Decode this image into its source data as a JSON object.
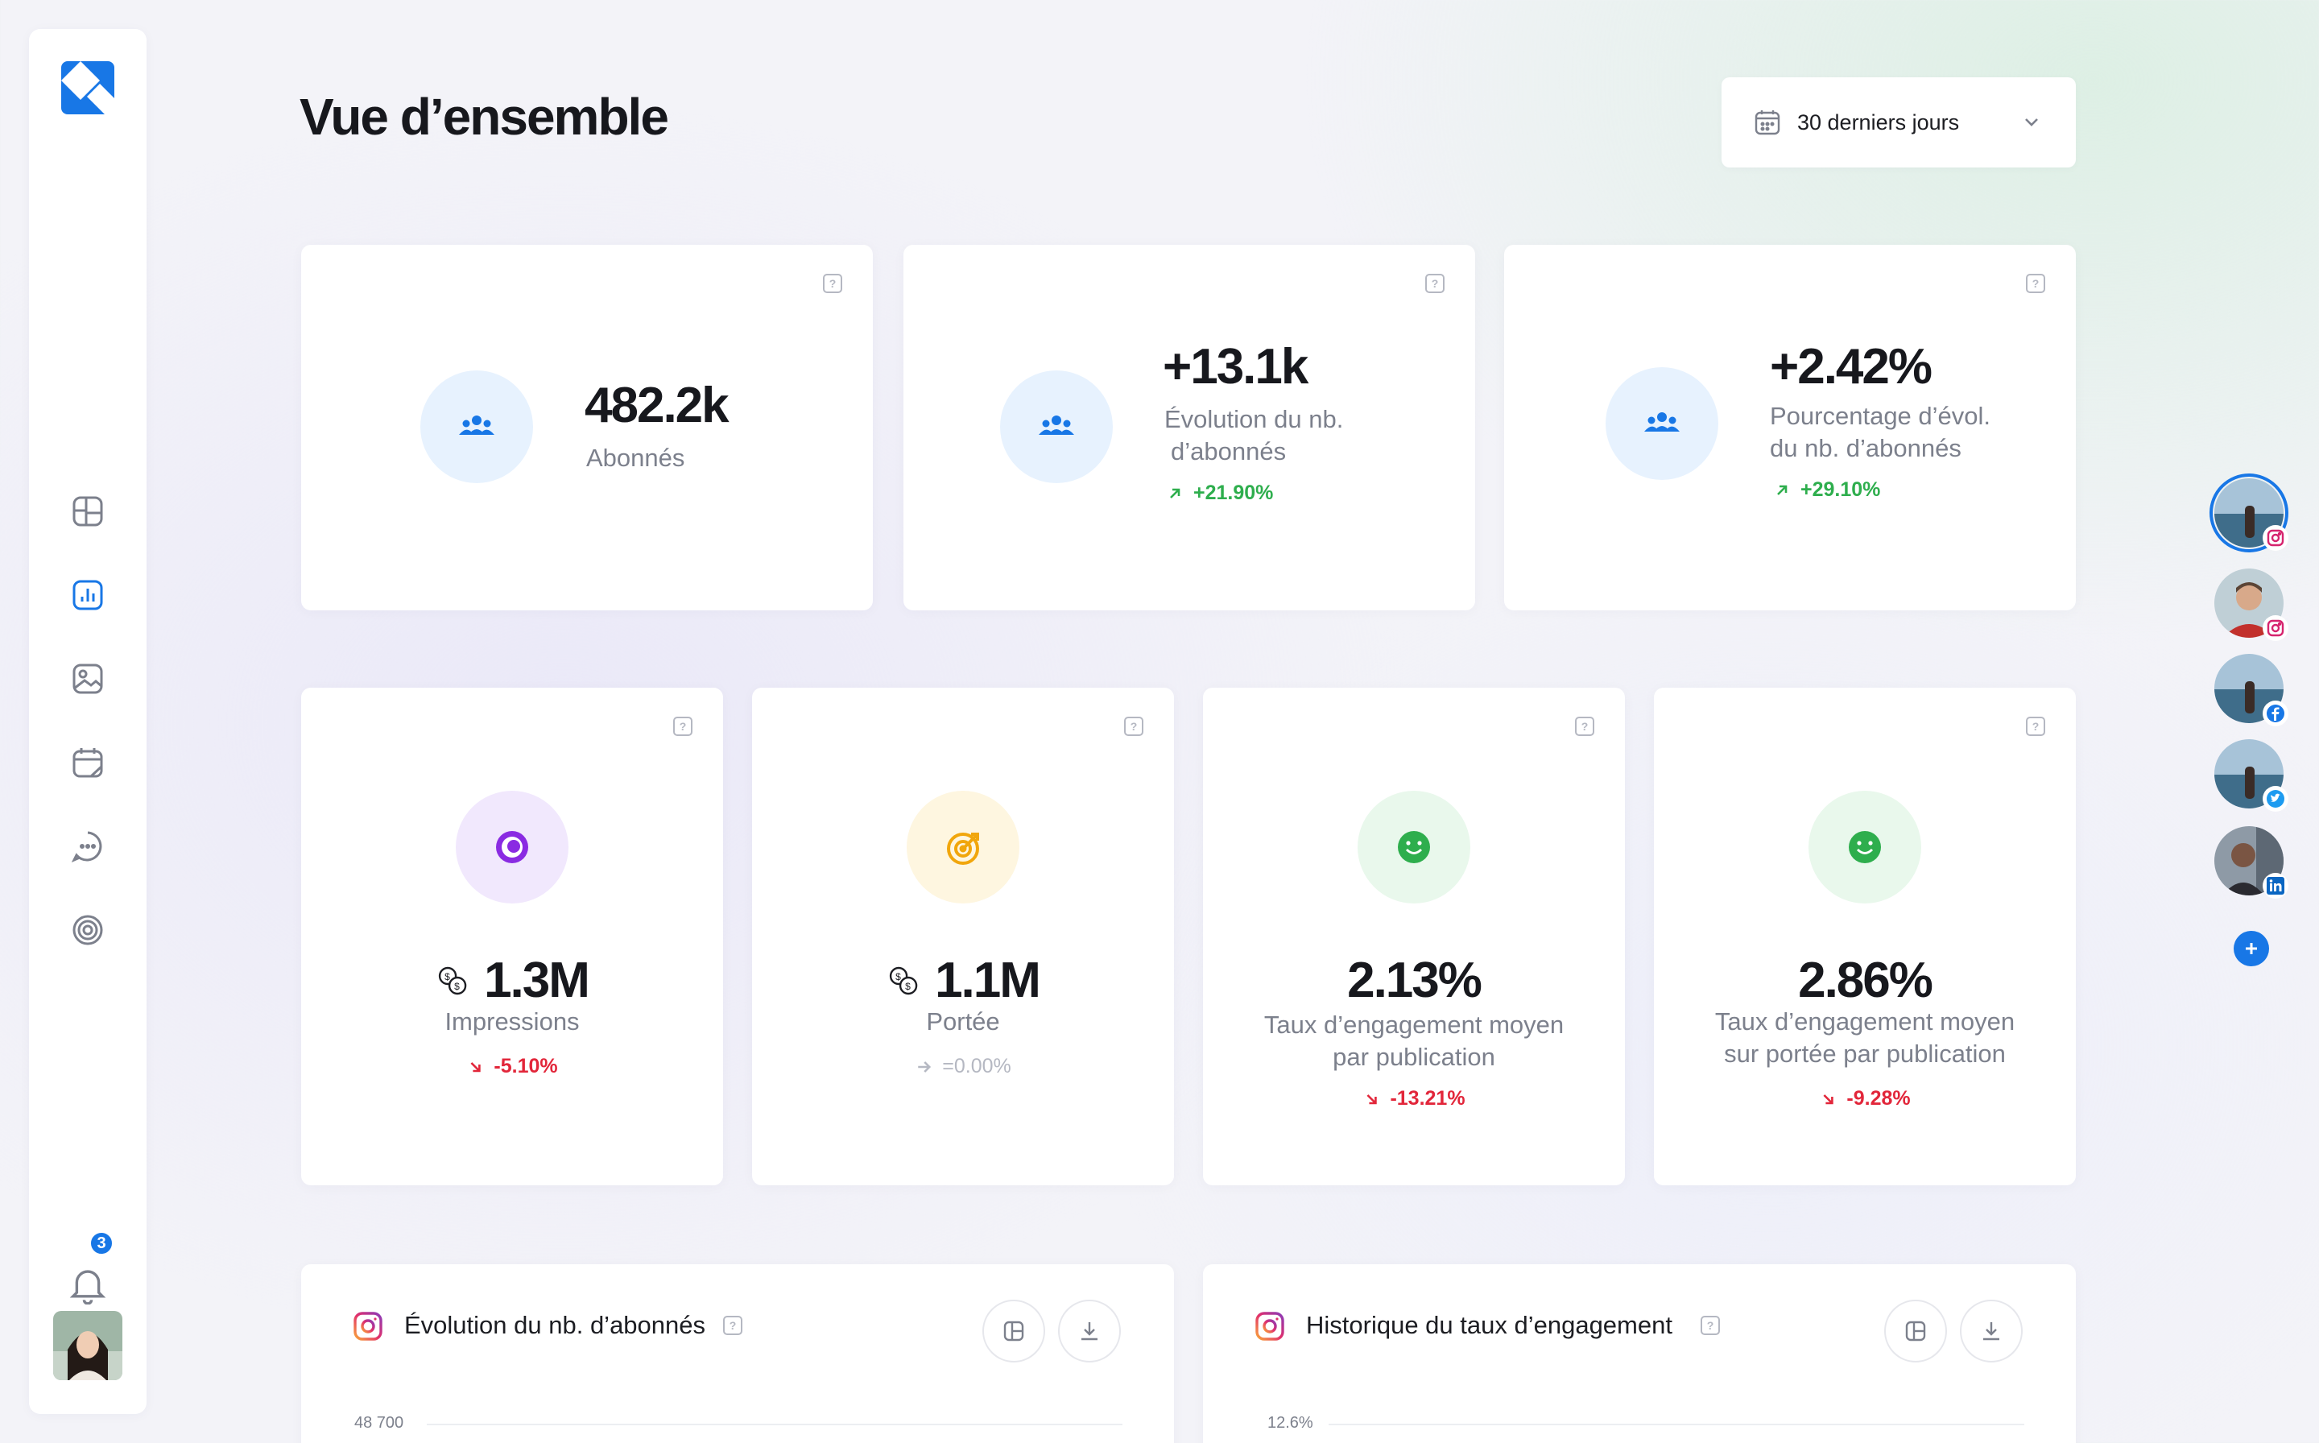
{
  "colors": {
    "accent": "#1877e6",
    "positive": "#2eae4d",
    "negative": "#e2263a",
    "neutral": "#b5b8c2"
  },
  "sidebar": {
    "logo": "app-logo-icon",
    "items": [
      {
        "name": "dashboard-icon"
      },
      {
        "name": "analytics-icon",
        "active": true
      },
      {
        "name": "media-icon"
      },
      {
        "name": "calendar-icon"
      },
      {
        "name": "messages-icon"
      },
      {
        "name": "target-icon"
      }
    ],
    "notifications": {
      "count": "3"
    }
  },
  "header": {
    "title": "Vue d’ensemble"
  },
  "date_filter": {
    "value": "30 derniers jours"
  },
  "kpi_top": [
    {
      "value": "482.2k",
      "label": "Abonnés"
    },
    {
      "value": "+13.1k",
      "label_lines": [
        "Évolution du nb.",
        "d’abonnés"
      ],
      "delta": "+21.90%",
      "trend": "up"
    },
    {
      "value": "+2.42%",
      "label_lines": [
        "Pourcentage d’évol.",
        "du nb. d’abonnés"
      ],
      "delta": "+29.10%",
      "trend": "up"
    }
  ],
  "kpi_bottom": [
    {
      "value": "1.3M",
      "label_lines": [
        "Impressions"
      ],
      "delta": "-5.10%",
      "trend": "down",
      "icon": "eye-icon"
    },
    {
      "value": "1.1M",
      "label_lines": [
        "Portée"
      ],
      "delta": "=0.00%",
      "trend": "flat",
      "icon": "target-icon"
    },
    {
      "value": "2.13%",
      "label_lines": [
        "Taux d’engagement moyen",
        "par publication"
      ],
      "delta": "-13.21%",
      "trend": "down",
      "icon": "smile-icon"
    },
    {
      "value": "2.86%",
      "label_lines": [
        "Taux d’engagement moyen",
        "sur portée par publication"
      ],
      "delta": "-9.28%",
      "trend": "down",
      "icon": "smile-icon"
    }
  ],
  "accounts": [
    {
      "network": "instagram-icon",
      "selected": true
    },
    {
      "network": "instagram-icon"
    },
    {
      "network": "facebook-icon"
    },
    {
      "network": "twitter-icon"
    },
    {
      "network": "linkedin-icon"
    }
  ],
  "charts": [
    {
      "title": "Évolution du nb. d’abonnés",
      "first_tick": "48 700"
    },
    {
      "title": "Historique du taux d’engagement",
      "first_tick": "12.6%"
    }
  ]
}
